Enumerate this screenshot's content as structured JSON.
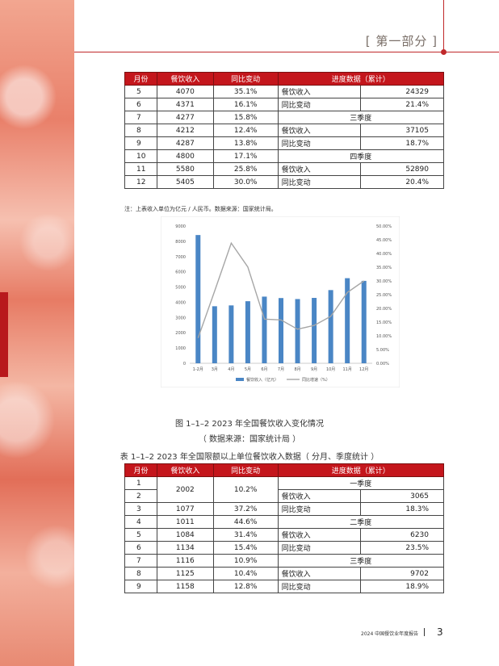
{
  "header": {
    "section": "[ 第一部分 ]"
  },
  "table1": {
    "headers": [
      "月份",
      "餐饮收入",
      "同比变动",
      "进度数据（累计）"
    ],
    "rows": [
      {
        "month": "5",
        "revenue": "4070",
        "yoy": "35.1%",
        "label": "餐饮收入",
        "value": "24329"
      },
      {
        "month": "6",
        "revenue": "4371",
        "yoy": "16.1%",
        "label": "同比变动",
        "value": "21.4%"
      },
      {
        "month": "7",
        "revenue": "4277",
        "yoy": "15.8%",
        "span": "三季度"
      },
      {
        "month": "8",
        "revenue": "4212",
        "yoy": "12.4%",
        "label": "餐饮收入",
        "value": "37105"
      },
      {
        "month": "9",
        "revenue": "4287",
        "yoy": "13.8%",
        "label": "同比变动",
        "value": "18.7%"
      },
      {
        "month": "10",
        "revenue": "4800",
        "yoy": "17.1%",
        "span": "四季度"
      },
      {
        "month": "11",
        "revenue": "5580",
        "yoy": "25.8%",
        "label": "餐饮收入",
        "value": "52890"
      },
      {
        "month": "12",
        "revenue": "5405",
        "yoy": "30.0%",
        "label": "同比变动",
        "value": "20.4%"
      }
    ]
  },
  "note": "注：上表收入单位为亿元 / 人民币。数据来源：国家统计局。",
  "chart_data": {
    "type": "bar",
    "categories": [
      "1-2月",
      "3月",
      "4月",
      "5月",
      "6月",
      "7月",
      "8月",
      "9月",
      "10月",
      "11月",
      "12月"
    ],
    "series": [
      {
        "name": "餐饮收入（亿元）",
        "type": "bar",
        "axis": "left",
        "color": "#4a86c5",
        "values": [
          8410,
          3740,
          3795,
          4070,
          4371,
          4277,
          4212,
          4287,
          4800,
          5580,
          5405
        ]
      },
      {
        "name": "同比增速（%）",
        "type": "line",
        "axis": "right",
        "color": "#a6a6a6",
        "values": [
          9.2,
          26.3,
          43.8,
          35.1,
          16.1,
          15.8,
          12.4,
          13.8,
          17.1,
          25.8,
          30.0
        ]
      }
    ],
    "yticks_left": [
      "0",
      "1000",
      "2000",
      "3000",
      "4000",
      "5000",
      "6000",
      "7000",
      "8000",
      "9000"
    ],
    "yticks_right": [
      "0.00%",
      "5.00%",
      "10.00%",
      "15.00%",
      "20.00%",
      "25.00%",
      "30.00%",
      "35.00%",
      "40.00%",
      "45.00%",
      "50.00%"
    ],
    "ylim_left": [
      0,
      9000
    ],
    "ylim_right": [
      0,
      50
    ],
    "legend": "bottom"
  },
  "captions": {
    "figure": "图 1–1–2   2023 年全国餐饮收入变化情况",
    "source": "（ 数据来源：国家统计局 ）",
    "table2_title": "表 1–1–2   2023 年全国限额以上单位餐饮收入数据（ 分月、季度统计 ）"
  },
  "table2": {
    "headers": [
      "月份",
      "餐饮收入",
      "同比变动",
      "进度数据（累计）"
    ],
    "rows": [
      {
        "month": "1",
        "revenue": "2002",
        "yoy": "10.2%",
        "merge": 2,
        "span": "一季度"
      },
      {
        "month": "2",
        "label": "餐饮收入",
        "value": "3065"
      },
      {
        "month": "3",
        "revenue": "1077",
        "yoy": "37.2%",
        "label": "同比变动",
        "value": "18.3%"
      },
      {
        "month": "4",
        "revenue": "1011",
        "yoy": "44.6%",
        "span": "二季度"
      },
      {
        "month": "5",
        "revenue": "1084",
        "yoy": "31.4%",
        "label": "餐饮收入",
        "value": "6230"
      },
      {
        "month": "6",
        "revenue": "1134",
        "yoy": "15.4%",
        "label": "同比变动",
        "value": "23.5%"
      },
      {
        "month": "7",
        "revenue": "1116",
        "yoy": "10.9%",
        "span": "三季度"
      },
      {
        "month": "8",
        "revenue": "1125",
        "yoy": "10.4%",
        "label": "餐饮收入",
        "value": "9702"
      },
      {
        "month": "9",
        "revenue": "1158",
        "yoy": "12.8%",
        "label": "同比变动",
        "value": "18.9%"
      }
    ]
  },
  "footer": {
    "text": "2024 中国餐饮业年度报告",
    "page": "3"
  }
}
